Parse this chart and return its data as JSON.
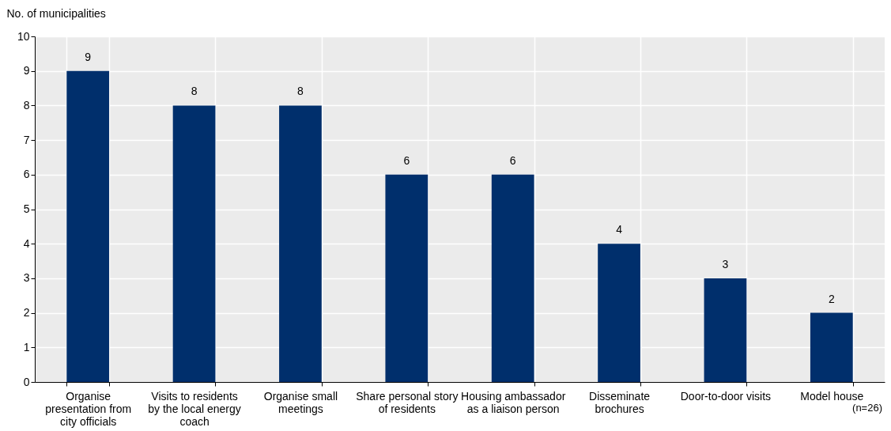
{
  "chart_data": {
    "type": "bar",
    "ylabel": "No. of municipalities",
    "categories": [
      "Organise presentation from city officials",
      "Visits to residents by the local energy coach",
      "Organise small meetings",
      "Share personal story of residents",
      "Housing ambassador as a liaison person",
      "Disseminate brochures",
      "Door-to-door visits",
      "Model house"
    ],
    "values": [
      9,
      8,
      8,
      6,
      6,
      4,
      3,
      2
    ],
    "color": "#002f6c",
    "ylim": [
      0,
      10
    ],
    "yticks": [
      0,
      1,
      2,
      3,
      4,
      5,
      6,
      7,
      8,
      9,
      10
    ],
    "grid": true,
    "data_labels": true,
    "annotations": [
      "(n=26)"
    ]
  }
}
